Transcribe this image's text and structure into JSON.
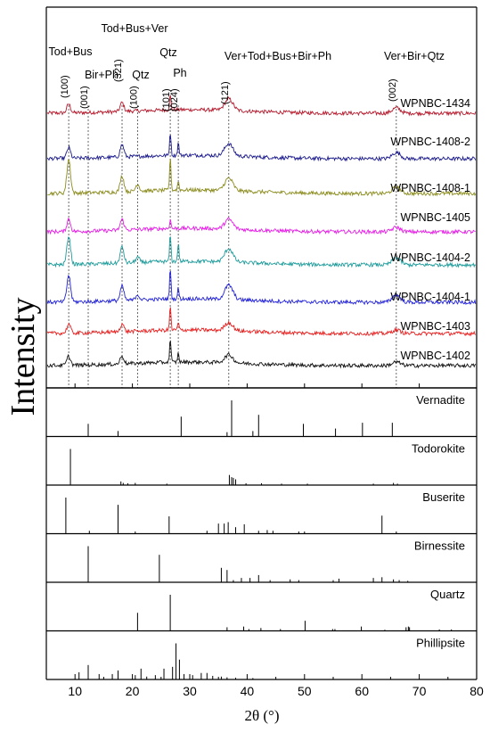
{
  "chart_data": {
    "type": "line",
    "xlabel": "2θ (°)",
    "ylabel": "Intensity",
    "xlim": [
      5,
      80
    ],
    "xticks": [
      10,
      20,
      30,
      40,
      50,
      60,
      70,
      80
    ],
    "grid": false,
    "phase_labels": [
      {
        "text": "Tod+Bus",
        "x": 8.9
      },
      {
        "text": "Bir+Ph",
        "x": 12.5
      },
      {
        "text": "Tod+Bus+Ver",
        "x": 18.2
      },
      {
        "text": "Qtz",
        "x": 26.6
      },
      {
        "text": "Ver+Tod+Bus+Bir+Ph",
        "x": 36.8
      },
      {
        "text": "Ver+Bir+Qtz",
        "x": 66.0
      },
      {
        "text": "Qtz",
        "x": 20.9
      },
      {
        "text": "Ph",
        "x": 28.0
      }
    ],
    "hkl_labels": [
      {
        "text": "(100)",
        "x": 8.9
      },
      {
        "text": "(001)",
        "x": 12.3
      },
      {
        "text": "(321)",
        "x": 18.2
      },
      {
        "text": "(100)",
        "x": 20.9
      },
      {
        "text": "(101)",
        "x": 26.6
      },
      {
        "text": "(024)",
        "x": 28.0
      },
      {
        "text": "(121)",
        "x": 36.8
      },
      {
        "text": "(002)",
        "x": 66.0
      }
    ],
    "reference_lines_x": [
      8.9,
      12.3,
      18.2,
      20.9,
      26.6,
      28.0,
      36.8,
      66.0
    ],
    "series": [
      {
        "name": "WPNBC-1434",
        "color": "#b5192c",
        "peaks": [
          [
            8.9,
            10
          ],
          [
            18.2,
            10
          ],
          [
            26.6,
            16
          ],
          [
            36.8,
            13
          ],
          [
            66.0,
            6
          ]
        ]
      },
      {
        "name": "WPNBC-1408-2",
        "color": "#1a1a8c",
        "peaks": [
          [
            8.9,
            12
          ],
          [
            18.2,
            14
          ],
          [
            26.6,
            26
          ],
          [
            28.0,
            14
          ],
          [
            36.8,
            14
          ],
          [
            66.0,
            7
          ]
        ]
      },
      {
        "name": "WPNBC-1408-1",
        "color": "#8c8c1f",
        "peaks": [
          [
            8.9,
            38
          ],
          [
            18.2,
            18
          ],
          [
            20.9,
            8
          ],
          [
            26.6,
            36
          ],
          [
            28.0,
            10
          ],
          [
            36.8,
            14
          ],
          [
            66.0,
            7
          ]
        ]
      },
      {
        "name": "WPNBC-1405",
        "color": "#e61ee6",
        "peaks": [
          [
            8.9,
            14
          ],
          [
            18.2,
            12
          ],
          [
            26.6,
            10
          ],
          [
            36.8,
            11
          ],
          [
            66.0,
            5
          ]
        ]
      },
      {
        "name": "WPNBC-1404-2",
        "color": "#1f9c9c",
        "peaks": [
          [
            8.9,
            32
          ],
          [
            18.2,
            18
          ],
          [
            20.9,
            6
          ],
          [
            26.6,
            30
          ],
          [
            28.0,
            20
          ],
          [
            36.8,
            15
          ],
          [
            66.0,
            8
          ]
        ]
      },
      {
        "name": "WPNBC-1404-1",
        "color": "#2222d8",
        "peaks": [
          [
            8.9,
            30
          ],
          [
            18.2,
            16
          ],
          [
            20.9,
            6
          ],
          [
            26.6,
            34
          ],
          [
            28.0,
            12
          ],
          [
            36.8,
            16
          ],
          [
            66.0,
            8
          ]
        ]
      },
      {
        "name": "WPNBC-1403",
        "color": "#e82020",
        "peaks": [
          [
            8.9,
            10
          ],
          [
            18.2,
            9
          ],
          [
            26.6,
            26
          ],
          [
            28.0,
            8
          ],
          [
            36.8,
            9
          ],
          [
            66.0,
            4
          ]
        ]
      },
      {
        "name": "WPNBC-1402",
        "color": "#111111",
        "peaks": [
          [
            8.9,
            10
          ],
          [
            18.2,
            9
          ],
          [
            26.6,
            26
          ],
          [
            28.0,
            10
          ],
          [
            36.8,
            9
          ],
          [
            66.0,
            4
          ]
        ]
      }
    ],
    "reference_patterns": [
      {
        "name": "Vernadite",
        "sticks": [
          [
            12.3,
            0.35
          ],
          [
            17.5,
            0.15
          ],
          [
            28.5,
            0.55
          ],
          [
            36.5,
            0.12
          ],
          [
            37.3,
            1.0
          ],
          [
            41.0,
            0.15
          ],
          [
            42.0,
            0.6
          ],
          [
            49.8,
            0.35
          ],
          [
            55.4,
            0.22
          ],
          [
            60.1,
            0.38
          ],
          [
            65.3,
            0.38
          ]
        ]
      },
      {
        "name": "Todorokite",
        "sticks": [
          [
            9.2,
            1.0
          ],
          [
            18.0,
            0.1
          ],
          [
            18.4,
            0.06
          ],
          [
            19.2,
            0.05
          ],
          [
            20.5,
            0.06
          ],
          [
            26.0,
            0.04
          ],
          [
            36.9,
            0.28
          ],
          [
            37.3,
            0.22
          ],
          [
            37.6,
            0.2
          ],
          [
            38.0,
            0.16
          ],
          [
            39.8,
            0.05
          ],
          [
            42.5,
            0.05
          ],
          [
            46.0,
            0.04
          ],
          [
            50.5,
            0.04
          ],
          [
            62.0,
            0.04
          ],
          [
            65.5,
            0.06
          ],
          [
            66.2,
            0.04
          ]
        ]
      },
      {
        "name": "Buserite",
        "sticks": [
          [
            8.4,
            1.0
          ],
          [
            12.5,
            0.08
          ],
          [
            17.5,
            0.8
          ],
          [
            20.5,
            0.06
          ],
          [
            26.4,
            0.48
          ],
          [
            33.0,
            0.08
          ],
          [
            35.0,
            0.28
          ],
          [
            36.0,
            0.28
          ],
          [
            36.7,
            0.32
          ],
          [
            38.0,
            0.18
          ],
          [
            39.5,
            0.26
          ],
          [
            42.0,
            0.08
          ],
          [
            43.5,
            0.1
          ],
          [
            44.5,
            0.08
          ],
          [
            49.0,
            0.06
          ],
          [
            50.0,
            0.06
          ],
          [
            63.5,
            0.5
          ],
          [
            66.0,
            0.06
          ]
        ]
      },
      {
        "name": "Birnessite",
        "sticks": [
          [
            12.3,
            1.0
          ],
          [
            24.7,
            0.76
          ],
          [
            35.5,
            0.4
          ],
          [
            36.5,
            0.34
          ],
          [
            37.6,
            0.06
          ],
          [
            39.0,
            0.12
          ],
          [
            40.5,
            0.12
          ],
          [
            42.0,
            0.2
          ],
          [
            44.0,
            0.06
          ],
          [
            47.5,
            0.08
          ],
          [
            49.0,
            0.06
          ],
          [
            55.0,
            0.06
          ],
          [
            56.0,
            0.1
          ],
          [
            62.0,
            0.12
          ],
          [
            63.5,
            0.14
          ],
          [
            65.5,
            0.08
          ],
          [
            66.5,
            0.06
          ],
          [
            68.0,
            0.04
          ]
        ]
      },
      {
        "name": "Quartz",
        "sticks": [
          [
            20.9,
            0.5
          ],
          [
            26.6,
            1.0
          ],
          [
            36.5,
            0.1
          ],
          [
            39.4,
            0.12
          ],
          [
            40.3,
            0.05
          ],
          [
            42.4,
            0.08
          ],
          [
            45.8,
            0.05
          ],
          [
            50.1,
            0.28
          ],
          [
            54.9,
            0.05
          ],
          [
            55.3,
            0.05
          ],
          [
            59.9,
            0.12
          ],
          [
            64.0,
            0.03
          ],
          [
            67.7,
            0.1
          ],
          [
            68.1,
            0.12
          ],
          [
            68.3,
            0.1
          ],
          [
            73.5,
            0.04
          ],
          [
            75.6,
            0.04
          ]
        ]
      },
      {
        "name": "Phillipsite",
        "sticks": [
          [
            10.7,
            0.2
          ],
          [
            12.3,
            0.4
          ],
          [
            14.2,
            0.15
          ],
          [
            16.5,
            0.15
          ],
          [
            17.5,
            0.25
          ],
          [
            20.5,
            0.12
          ],
          [
            21.5,
            0.3
          ],
          [
            22.5,
            0.08
          ],
          [
            24.0,
            0.12
          ],
          [
            25.5,
            0.3
          ],
          [
            27.0,
            0.35
          ],
          [
            27.6,
            1.0
          ],
          [
            28.2,
            0.55
          ],
          [
            29.0,
            0.15
          ],
          [
            30.5,
            0.12
          ],
          [
            32.0,
            0.18
          ],
          [
            33.0,
            0.18
          ],
          [
            34.0,
            0.1
          ],
          [
            35.5,
            0.08
          ],
          [
            36.5,
            0.06
          ],
          [
            38.0,
            0.05
          ],
          [
            41.0,
            0.04
          ]
        ]
      }
    ]
  }
}
